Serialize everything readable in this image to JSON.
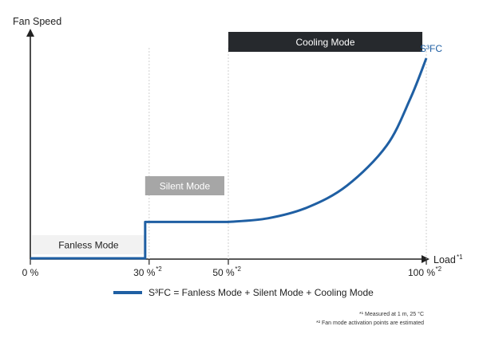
{
  "chart_data": {
    "type": "line",
    "xlabel": "Load",
    "xlabel_note": "*1",
    "ylabel": "Fan Speed",
    "xlim": [
      0,
      100
    ],
    "ticks": [
      {
        "value": 0,
        "label": "0 %",
        "note": ""
      },
      {
        "value": 30,
        "label": "30 %",
        "note": "*2"
      },
      {
        "value": 50,
        "label": "50 %",
        "note": "*2"
      },
      {
        "value": 100,
        "label": "100 %",
        "note": "*2"
      }
    ],
    "series": [
      {
        "name": "S³FC",
        "color": "#1f5fa3",
        "points": [
          [
            0,
            0
          ],
          [
            29,
            0
          ],
          [
            29,
            10
          ],
          [
            50,
            10
          ],
          [
            60,
            11
          ],
          [
            70,
            14
          ],
          [
            80,
            20
          ],
          [
            90,
            31
          ],
          [
            96,
            44
          ],
          [
            100,
            55
          ]
        ]
      }
    ],
    "modes": [
      {
        "name": "Fanless Mode",
        "color": "#f2f2f2",
        "text_color": "#222222",
        "x_start": 0,
        "x_end": 29
      },
      {
        "name": "Silent Mode",
        "color": "#a6a6a6",
        "text_color": "#ffffff",
        "x_start": 29,
        "x_end": 49
      },
      {
        "name": "Cooling Mode",
        "color": "#26292d",
        "text_color": "#ffffff",
        "x_start": 50,
        "x_end": 99
      }
    ],
    "legend": {
      "text": "S³FC = Fanless Mode + Silent Mode + Cooling Mode",
      "color": "#1f5fa3",
      "position": "bottom-center"
    },
    "footnotes": [
      "*¹ Measured at 1 m, 25 °C",
      "*² Fan mode activation points are estimated"
    ],
    "grid": false
  }
}
